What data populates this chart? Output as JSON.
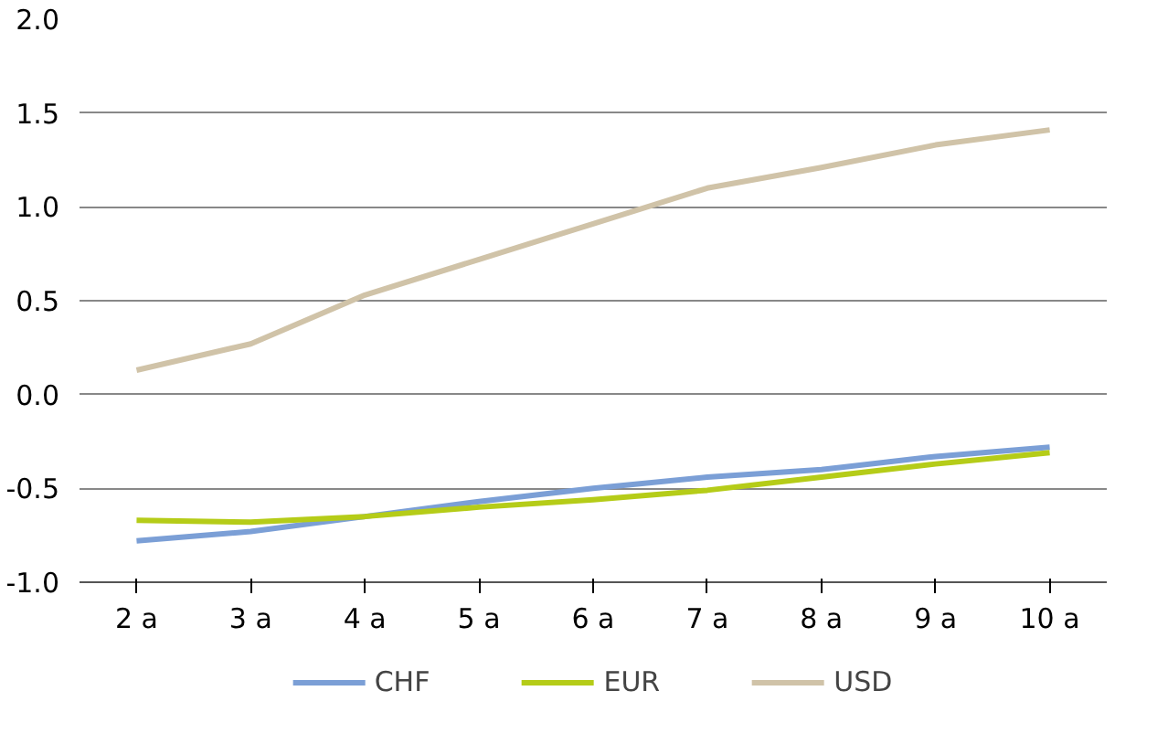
{
  "chart_data": {
    "type": "line",
    "categories": [
      "2 a",
      "3 a",
      "4 a",
      "5 a",
      "6 a",
      "7 a",
      "8 a",
      "9 a",
      "10 a"
    ],
    "series": [
      {
        "name": "CHF",
        "color": "#7b9fd6",
        "values": [
          -0.78,
          -0.73,
          -0.65,
          -0.57,
          -0.5,
          -0.44,
          -0.4,
          -0.33,
          -0.28
        ]
      },
      {
        "name": "EUR",
        "color": "#b5cc18",
        "values": [
          -0.67,
          -0.68,
          -0.65,
          -0.6,
          -0.56,
          -0.51,
          -0.44,
          -0.37,
          -0.31
        ]
      },
      {
        "name": "USD",
        "color": "#d0c3a8",
        "values": [
          0.13,
          0.27,
          0.53,
          0.72,
          0.91,
          1.1,
          1.21,
          1.33,
          1.41
        ]
      }
    ],
    "ylim": [
      -1.0,
      2.0
    ],
    "yticks": [
      {
        "value": -1.0,
        "label": "-1.0"
      },
      {
        "value": -0.5,
        "label": "-0.5"
      },
      {
        "value": 0.0,
        "label": "0.0"
      },
      {
        "value": 0.5,
        "label": "0.5"
      },
      {
        "value": 1.0,
        "label": "1.0"
      },
      {
        "value": 1.5,
        "label": "1.5"
      },
      {
        "value": 2.0,
        "label": "2.0"
      }
    ],
    "grid": "y",
    "legend": "bottom",
    "marker": "none",
    "line_style": "solid"
  }
}
